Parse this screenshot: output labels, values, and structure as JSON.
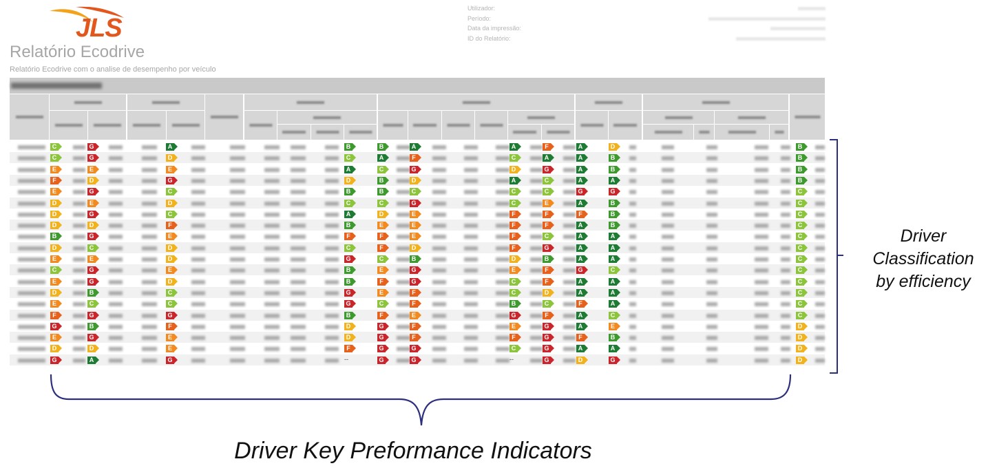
{
  "logo": {
    "text": "JLS"
  },
  "report": {
    "title": "Relatório Ecodrive",
    "subtitle": "Relatório Ecodrive com o analise de desempenho por veículo"
  },
  "meta": {
    "labels": [
      "Utilizador:",
      "Período:",
      "Data da impressão:",
      "ID do Relatório:"
    ]
  },
  "grade_colors": {
    "A": "#1e7b34",
    "B": "#3e9a2f",
    "C": "#8cc43c",
    "D": "#f2b21d",
    "E": "#f28a1f",
    "F": "#e6611c",
    "G": "#c9252b"
  },
  "table": {
    "rows": [
      [
        "C",
        "G",
        "A",
        "B",
        "B",
        "A",
        "A",
        "F",
        "A",
        "D",
        "B"
      ],
      [
        "C",
        "G",
        "D",
        "C",
        "A",
        "F",
        "C",
        "A",
        "A",
        "B",
        "B"
      ],
      [
        "E",
        "E",
        "E",
        "A",
        "C",
        "G",
        "D",
        "G",
        "A",
        "B",
        "B"
      ],
      [
        "F",
        "D",
        "G",
        "D",
        "B",
        "D",
        "A",
        "C",
        "A",
        "A",
        "B"
      ],
      [
        "E",
        "G",
        "C",
        "B",
        "B",
        "C",
        "C",
        "C",
        "G",
        "G",
        "C"
      ],
      [
        "D",
        "E",
        "D",
        "C",
        "C",
        "G",
        "C",
        "E",
        "A",
        "B",
        "C"
      ],
      [
        "D",
        "G",
        "C",
        "A",
        "D",
        "E",
        "F",
        "F",
        "F",
        "B",
        "C"
      ],
      [
        "D",
        "D",
        "F",
        "B",
        "E",
        "E",
        "F",
        "F",
        "A",
        "B",
        "C"
      ],
      [
        "B",
        "G",
        "E",
        "F",
        "F",
        "E",
        "F",
        "C",
        "A",
        "A",
        "C"
      ],
      [
        "D",
        "C",
        "D",
        "C",
        "F",
        "D",
        "F",
        "G",
        "A",
        "A",
        "C"
      ],
      [
        "E",
        "E",
        "D",
        "G",
        "C",
        "B",
        "D",
        "B",
        "A",
        "A",
        "C"
      ],
      [
        "C",
        "G",
        "E",
        "B",
        "E",
        "G",
        "E",
        "F",
        "G",
        "C",
        "C"
      ],
      [
        "E",
        "G",
        "D",
        "B",
        "F",
        "G",
        "C",
        "F",
        "A",
        "A",
        "C"
      ],
      [
        "D",
        "B",
        "C",
        "G",
        "E",
        "F",
        "C",
        "D",
        "A",
        "A",
        "C"
      ],
      [
        "E",
        "C",
        "C",
        "G",
        "C",
        "F",
        "B",
        "C",
        "F",
        "A",
        "C"
      ],
      [
        "F",
        "G",
        "G",
        "B",
        "F",
        "E",
        "G",
        "F",
        "A",
        "C",
        "C"
      ],
      [
        "G",
        "B",
        "F",
        "D",
        "G",
        "F",
        "E",
        "G",
        "A",
        "E",
        "D"
      ],
      [
        "E",
        "G",
        "E",
        "D",
        "G",
        "F",
        "F",
        "G",
        "F",
        "B",
        "D"
      ],
      [
        "D",
        "D",
        "E",
        "F",
        "G",
        "G",
        "C",
        "G",
        "A",
        "A",
        "D"
      ],
      [
        "G",
        "A",
        "G",
        "",
        "G",
        "G",
        "",
        "G",
        "D",
        "G",
        "D"
      ]
    ]
  },
  "annotations": {
    "right_lines": [
      "Driver",
      "Classification",
      "by efficiency"
    ],
    "bottom": "Driver Key Preformance Indicators"
  },
  "annotation_color": "#2c2f7c"
}
